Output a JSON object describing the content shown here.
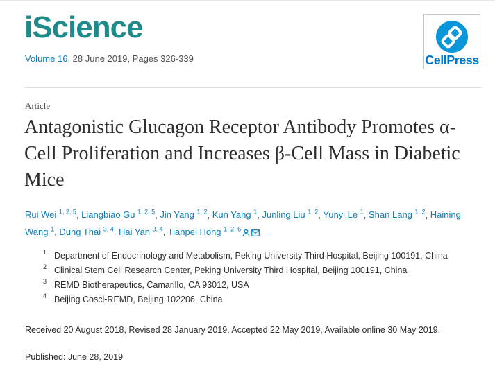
{
  "journal": {
    "name": "iScience",
    "volume_link": "Volume 16",
    "meta_rest": ", 28 June 2019, Pages 326-339",
    "publisher_logo": "CellPress",
    "brand_color": "#1f8a8a",
    "link_color": "#0c7dbb"
  },
  "article": {
    "type": "Article",
    "title": "Antagonistic Glucagon Receptor Antibody Promotes α-Cell Proliferation and Increases β-Cell Mass in Diabetic Mice"
  },
  "authors": [
    {
      "name": "Rui Wei",
      "sup": "1, 2, 5"
    },
    {
      "name": "Liangbiao Gu",
      "sup": "1, 2, 5"
    },
    {
      "name": "Jin Yang",
      "sup": "1, 2"
    },
    {
      "name": "Kun Yang",
      "sup": "1"
    },
    {
      "name": "Junling Liu",
      "sup": "1, 2"
    },
    {
      "name": "Yunyi Le",
      "sup": "1"
    },
    {
      "name": "Shan Lang",
      "sup": "1, 2"
    },
    {
      "name": "Haining Wang",
      "sup": "1"
    },
    {
      "name": "Dung Thai",
      "sup": "3, 4"
    },
    {
      "name": "Hai Yan",
      "sup": "3, 4"
    },
    {
      "name": "Tianpei Hong",
      "sup": "1, 2, 6",
      "icons": [
        "person-icon",
        "envelope-icon"
      ]
    }
  ],
  "affiliations": [
    {
      "num": "1",
      "text": "Department of Endocrinology and Metabolism, Peking University Third Hospital, Beijing 100191, China"
    },
    {
      "num": "2",
      "text": "Clinical Stem Cell Research Center, Peking University Third Hospital, Beijing 100191, China"
    },
    {
      "num": "3",
      "text": "REMD Biotherapeutics, Camarillo, CA 93012, USA"
    },
    {
      "num": "4",
      "text": "Beijing Cosci-REMD, Beijing 102206, China"
    }
  ],
  "history": {
    "dates": "Received 20 August 2018, Revised 28 January 2019, Accepted 22 May 2019, Available online 30 May 2019.",
    "published": "Published: June 28, 2019"
  }
}
